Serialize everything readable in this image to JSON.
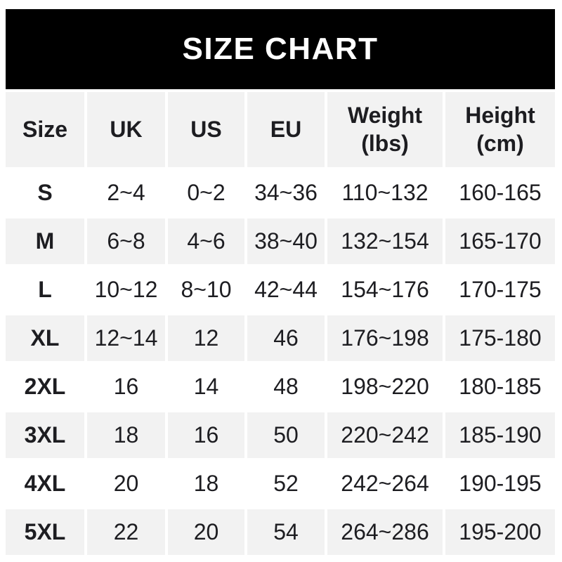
{
  "banner": {
    "title": "SIZE CHART"
  },
  "table": {
    "headers": [
      {
        "label": "Size"
      },
      {
        "label": "UK"
      },
      {
        "label": "US"
      },
      {
        "label": "EU"
      },
      {
        "label": "Weight",
        "sub": "(lbs)"
      },
      {
        "label": "Height",
        "sub": "(cm)"
      }
    ]
  },
  "chart_data": {
    "type": "table",
    "title": "SIZE CHART",
    "columns": [
      "Size",
      "UK",
      "US",
      "EU",
      "Weight (lbs)",
      "Height (cm)"
    ],
    "rows": [
      [
        "S",
        "2~4",
        "0~2",
        "34~36",
        "110~132",
        "160-165"
      ],
      [
        "M",
        "6~8",
        "4~6",
        "38~40",
        "132~154",
        "165-170"
      ],
      [
        "L",
        "10~12",
        "8~10",
        "42~44",
        "154~176",
        "170-175"
      ],
      [
        "XL",
        "12~14",
        "12",
        "46",
        "176~198",
        "175-180"
      ],
      [
        "2XL",
        "16",
        "14",
        "48",
        "198~220",
        "180-185"
      ],
      [
        "3XL",
        "18",
        "16",
        "50",
        "220~242",
        "185-190"
      ],
      [
        "4XL",
        "20",
        "18",
        "52",
        "242~264",
        "190-195"
      ],
      [
        "5XL",
        "22",
        "20",
        "54",
        "264~286",
        "195-200"
      ]
    ],
    "layout": {
      "banner_bg": "#000000",
      "banner_text": "#ffffff",
      "row_alt_bg": "#f2f2f2",
      "row_bg": "#ffffff",
      "text_color": "#1d1d21",
      "header_bold": true,
      "first_column_bold": true
    }
  }
}
